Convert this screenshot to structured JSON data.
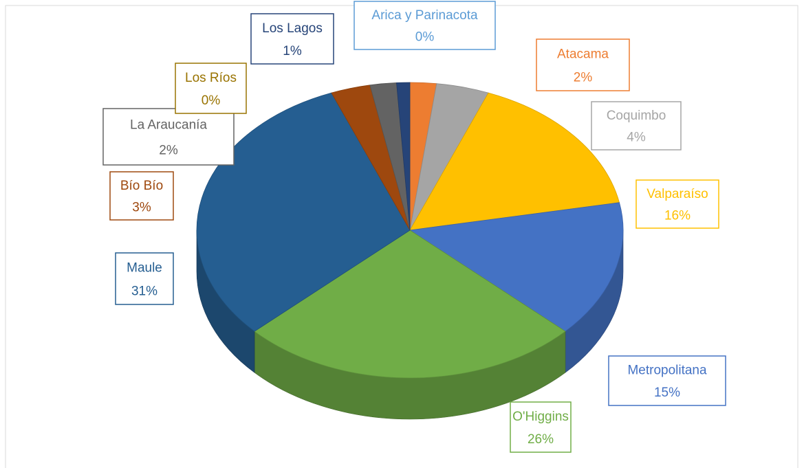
{
  "chart_data": {
    "type": "pie3d",
    "categories": [
      "Arica y Parinacota",
      "Atacama",
      "Coquimbo",
      "Valparaíso",
      "Metropolitana",
      "O'Higgins",
      "Maule",
      "Bío Bío",
      "La Araucanía",
      "Los Ríos",
      "Los Lagos"
    ],
    "values": [
      0,
      2,
      4,
      16,
      15,
      26,
      31,
      3,
      2,
      0,
      1
    ],
    "value_labels": [
      "0%",
      "2%",
      "4%",
      "16%",
      "15%",
      "26%",
      "31%",
      "3%",
      "2%",
      "0%",
      "1%"
    ],
    "colors": [
      "#5b9bd5",
      "#ed7d31",
      "#a5a5a5",
      "#ffc000",
      "#4472c4",
      "#70ad47",
      "#255e91",
      "#9e480e",
      "#636363",
      "#997300",
      "#264478"
    ]
  }
}
